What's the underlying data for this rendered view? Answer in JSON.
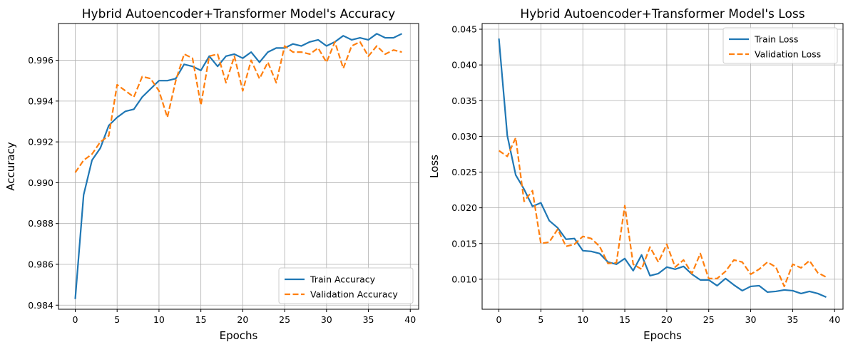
{
  "chart_data": [
    {
      "type": "line",
      "title": "Hybrid Autoencoder+Transformer Model's Accuracy",
      "xlabel": "Epochs",
      "ylabel": "Accuracy",
      "xlim": [
        -2,
        41
      ],
      "ylim": [
        0.9838,
        0.9978
      ],
      "xticks": [
        0,
        5,
        10,
        15,
        20,
        25,
        30,
        35,
        40
      ],
      "yticks": [
        0.984,
        0.986,
        0.988,
        0.99,
        0.992,
        0.994,
        0.996
      ],
      "ytick_decimals": 3,
      "grid": true,
      "legend_position": "lower-right",
      "series": [
        {
          "name": "Train Accuracy",
          "color": "#1f77b4",
          "style": "solid",
          "x": [
            0,
            1,
            2,
            3,
            4,
            5,
            6,
            7,
            8,
            9,
            10,
            11,
            12,
            13,
            14,
            15,
            16,
            17,
            18,
            19,
            20,
            21,
            22,
            23,
            24,
            25,
            26,
            27,
            28,
            29,
            30,
            31,
            32,
            33,
            34,
            35,
            36,
            37,
            38,
            39
          ],
          "values": [
            0.9843,
            0.9894,
            0.9911,
            0.9917,
            0.9928,
            0.9932,
            0.9935,
            0.9936,
            0.9942,
            0.9946,
            0.995,
            0.995,
            0.9951,
            0.9958,
            0.9957,
            0.9955,
            0.9962,
            0.9957,
            0.9962,
            0.9963,
            0.9961,
            0.9964,
            0.9959,
            0.9964,
            0.9966,
            0.9966,
            0.9968,
            0.9967,
            0.9969,
            0.997,
            0.9967,
            0.9969,
            0.9972,
            0.997,
            0.9971,
            0.997,
            0.9973,
            0.9971,
            0.9971,
            0.9973
          ]
        },
        {
          "name": "Validation Accuracy",
          "color": "#ff7f0e",
          "style": "dashed",
          "x": [
            0,
            1,
            2,
            3,
            4,
            5,
            6,
            7,
            8,
            9,
            10,
            11,
            12,
            13,
            14,
            15,
            16,
            17,
            18,
            19,
            20,
            21,
            22,
            23,
            24,
            25,
            26,
            27,
            28,
            29,
            30,
            31,
            32,
            33,
            34,
            35,
            36,
            37,
            38,
            39
          ],
          "values": [
            0.9905,
            0.9911,
            0.9914,
            0.992,
            0.9923,
            0.9948,
            0.9945,
            0.9942,
            0.9952,
            0.9951,
            0.9945,
            0.9932,
            0.995,
            0.9963,
            0.9961,
            0.9938,
            0.9962,
            0.9963,
            0.9949,
            0.9962,
            0.9945,
            0.996,
            0.9951,
            0.9959,
            0.9949,
            0.9967,
            0.9964,
            0.9964,
            0.9963,
            0.9966,
            0.9959,
            0.9969,
            0.9956,
            0.9967,
            0.9969,
            0.9962,
            0.9967,
            0.9963,
            0.9965,
            0.9964
          ]
        }
      ]
    },
    {
      "type": "line",
      "title": "Hybrid Autoencoder+Transformer Model's Loss",
      "xlabel": "Epochs",
      "ylabel": "Loss",
      "xlim": [
        -2,
        41
      ],
      "ylim": [
        0.0058,
        0.0458
      ],
      "xticks": [
        0,
        5,
        10,
        15,
        20,
        25,
        30,
        35,
        40
      ],
      "yticks": [
        0.01,
        0.015,
        0.02,
        0.025,
        0.03,
        0.035,
        0.04,
        0.045
      ],
      "ytick_decimals": 3,
      "grid": true,
      "legend_position": "upper-right",
      "series": [
        {
          "name": "Train Loss",
          "color": "#1f77b4",
          "style": "solid",
          "x": [
            0,
            1,
            2,
            3,
            4,
            5,
            6,
            7,
            8,
            9,
            10,
            11,
            12,
            13,
            14,
            15,
            16,
            17,
            18,
            19,
            20,
            21,
            22,
            23,
            24,
            25,
            26,
            27,
            28,
            29,
            30,
            31,
            32,
            33,
            34,
            35,
            36,
            37,
            38,
            39
          ],
          "values": [
            0.0437,
            0.0301,
            0.0246,
            0.0226,
            0.0202,
            0.0207,
            0.0182,
            0.0172,
            0.0156,
            0.0157,
            0.014,
            0.0139,
            0.0136,
            0.0124,
            0.0121,
            0.0129,
            0.0112,
            0.0134,
            0.0105,
            0.0108,
            0.0117,
            0.0114,
            0.0118,
            0.0107,
            0.0099,
            0.0099,
            0.0091,
            0.0101,
            0.0092,
            0.0084,
            0.009,
            0.0091,
            0.0082,
            0.0083,
            0.0085,
            0.0084,
            0.008,
            0.0083,
            0.008,
            0.0075
          ]
        },
        {
          "name": "Validation Loss",
          "color": "#ff7f0e",
          "style": "dashed",
          "x": [
            0,
            1,
            2,
            3,
            4,
            5,
            6,
            7,
            8,
            9,
            10,
            11,
            12,
            13,
            14,
            15,
            16,
            17,
            18,
            19,
            20,
            21,
            22,
            23,
            24,
            25,
            26,
            27,
            28,
            29,
            30,
            31,
            32,
            33,
            34,
            35,
            36,
            37,
            38,
            39
          ],
          "values": [
            0.028,
            0.0272,
            0.0298,
            0.0209,
            0.0224,
            0.015,
            0.0152,
            0.017,
            0.0146,
            0.0149,
            0.016,
            0.0157,
            0.0146,
            0.0122,
            0.0123,
            0.0203,
            0.0121,
            0.0114,
            0.0145,
            0.0124,
            0.0149,
            0.0117,
            0.0127,
            0.0108,
            0.0136,
            0.0101,
            0.0101,
            0.0111,
            0.0127,
            0.0124,
            0.0107,
            0.0114,
            0.0124,
            0.0117,
            0.009,
            0.0121,
            0.0116,
            0.0126,
            0.0109,
            0.0103
          ]
        }
      ]
    }
  ]
}
